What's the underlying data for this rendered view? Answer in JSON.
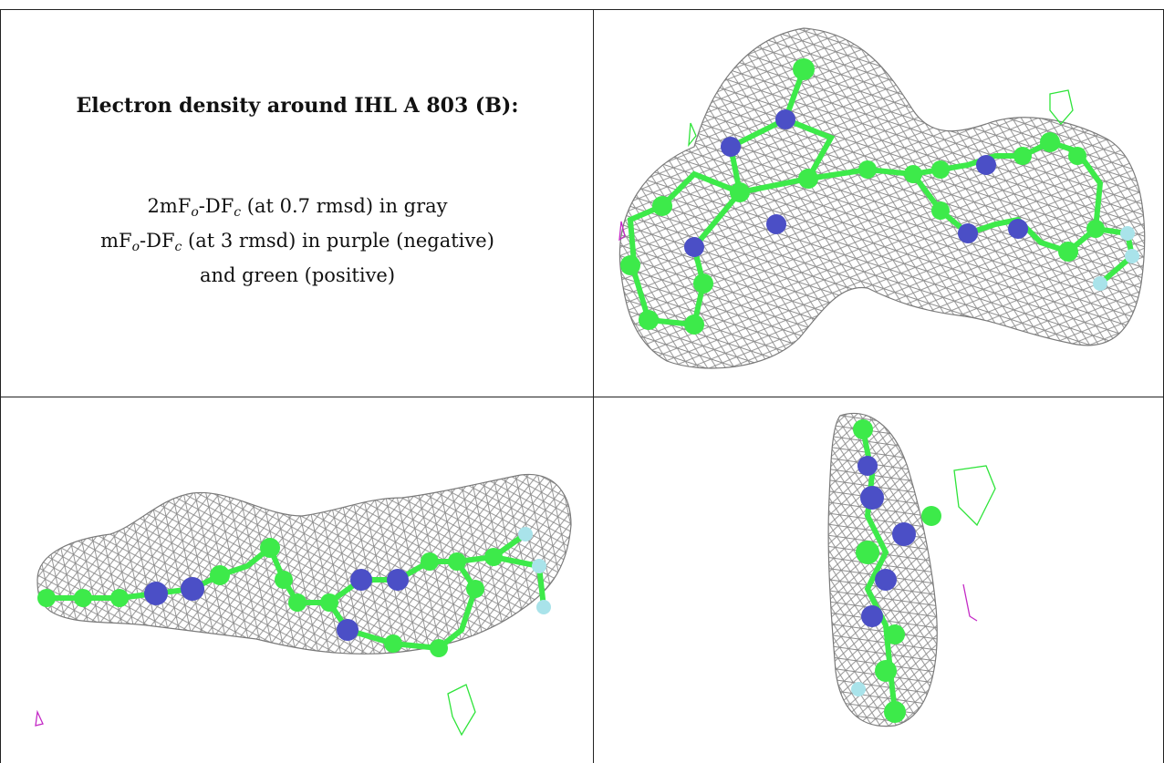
{
  "title": "Electron density around IHL A 803 (B):",
  "caption": {
    "line1_prefix": "2mF",
    "line1_sub1": "o",
    "line1_mid": "-DF",
    "line1_sub2": "c",
    "line1_suffix": " (at 0.7 rmsd) in gray",
    "line2_prefix": "mF",
    "line2_sub1": "o",
    "line2_mid": "-DF",
    "line2_sub2": "c",
    "line2_suffix": " (at 3 rmsd) in purple (negative)",
    "line3": "and green (positive)"
  },
  "colors": {
    "carbon": "#3dea4a",
    "nitrogen": "#4b4fc6",
    "fluorine": "#a9e3ea",
    "mesh": "#8a8a8a",
    "positive": "#2fe43a",
    "negative": "#c42ac6"
  },
  "views": [
    "top-view",
    "side-view",
    "end-view"
  ]
}
